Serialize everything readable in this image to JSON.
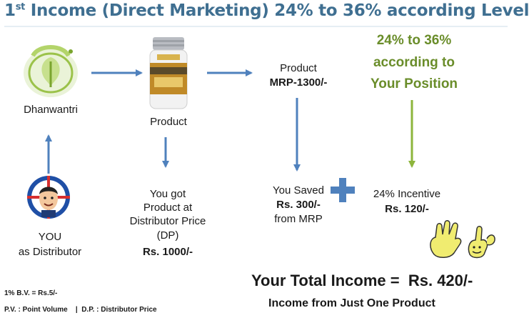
{
  "header": {
    "title_prefix": "1",
    "title_sup": "st",
    "title_rest": " Income (Direct Marketing) 24% to 36% according Level"
  },
  "nodes": {
    "dhanwantri": "Dhanwantri",
    "product": "Product",
    "product_mrp_label": "Product",
    "product_mrp_value": "MRP-1300/-",
    "position_line1": "24% to 36%",
    "position_line2": "according to",
    "position_line3": "Your Position",
    "you_line1": "YOU",
    "you_line2": "as Distributor",
    "dp_line1": "You got",
    "dp_line2": "Product at",
    "dp_line3": "Distributor Price",
    "dp_line4": "(DP)",
    "dp_value": "Rs. 1000/-",
    "saved_line1": "You Saved",
    "saved_value": "Rs. 300/-",
    "saved_line3": "from MRP",
    "incentive_line1": "24% Incentive",
    "incentive_value": "Rs. 120/-"
  },
  "summary": {
    "total_label": "Your Total Income =",
    "total_value": "Rs. 420/-",
    "subtitle": "Income from Just One Product"
  },
  "notes": {
    "bv": "1% B.V. = Rs.5/-",
    "pv_dp": "P.V. : Point Volume    |  D.P. : Distributor Price"
  },
  "colors": {
    "title": "#3f6f91",
    "arrow_blue": "#4f81bd",
    "arrow_green": "#8db53c",
    "highlight_green": "#6a8d2a",
    "plus": "#4f81bd"
  }
}
